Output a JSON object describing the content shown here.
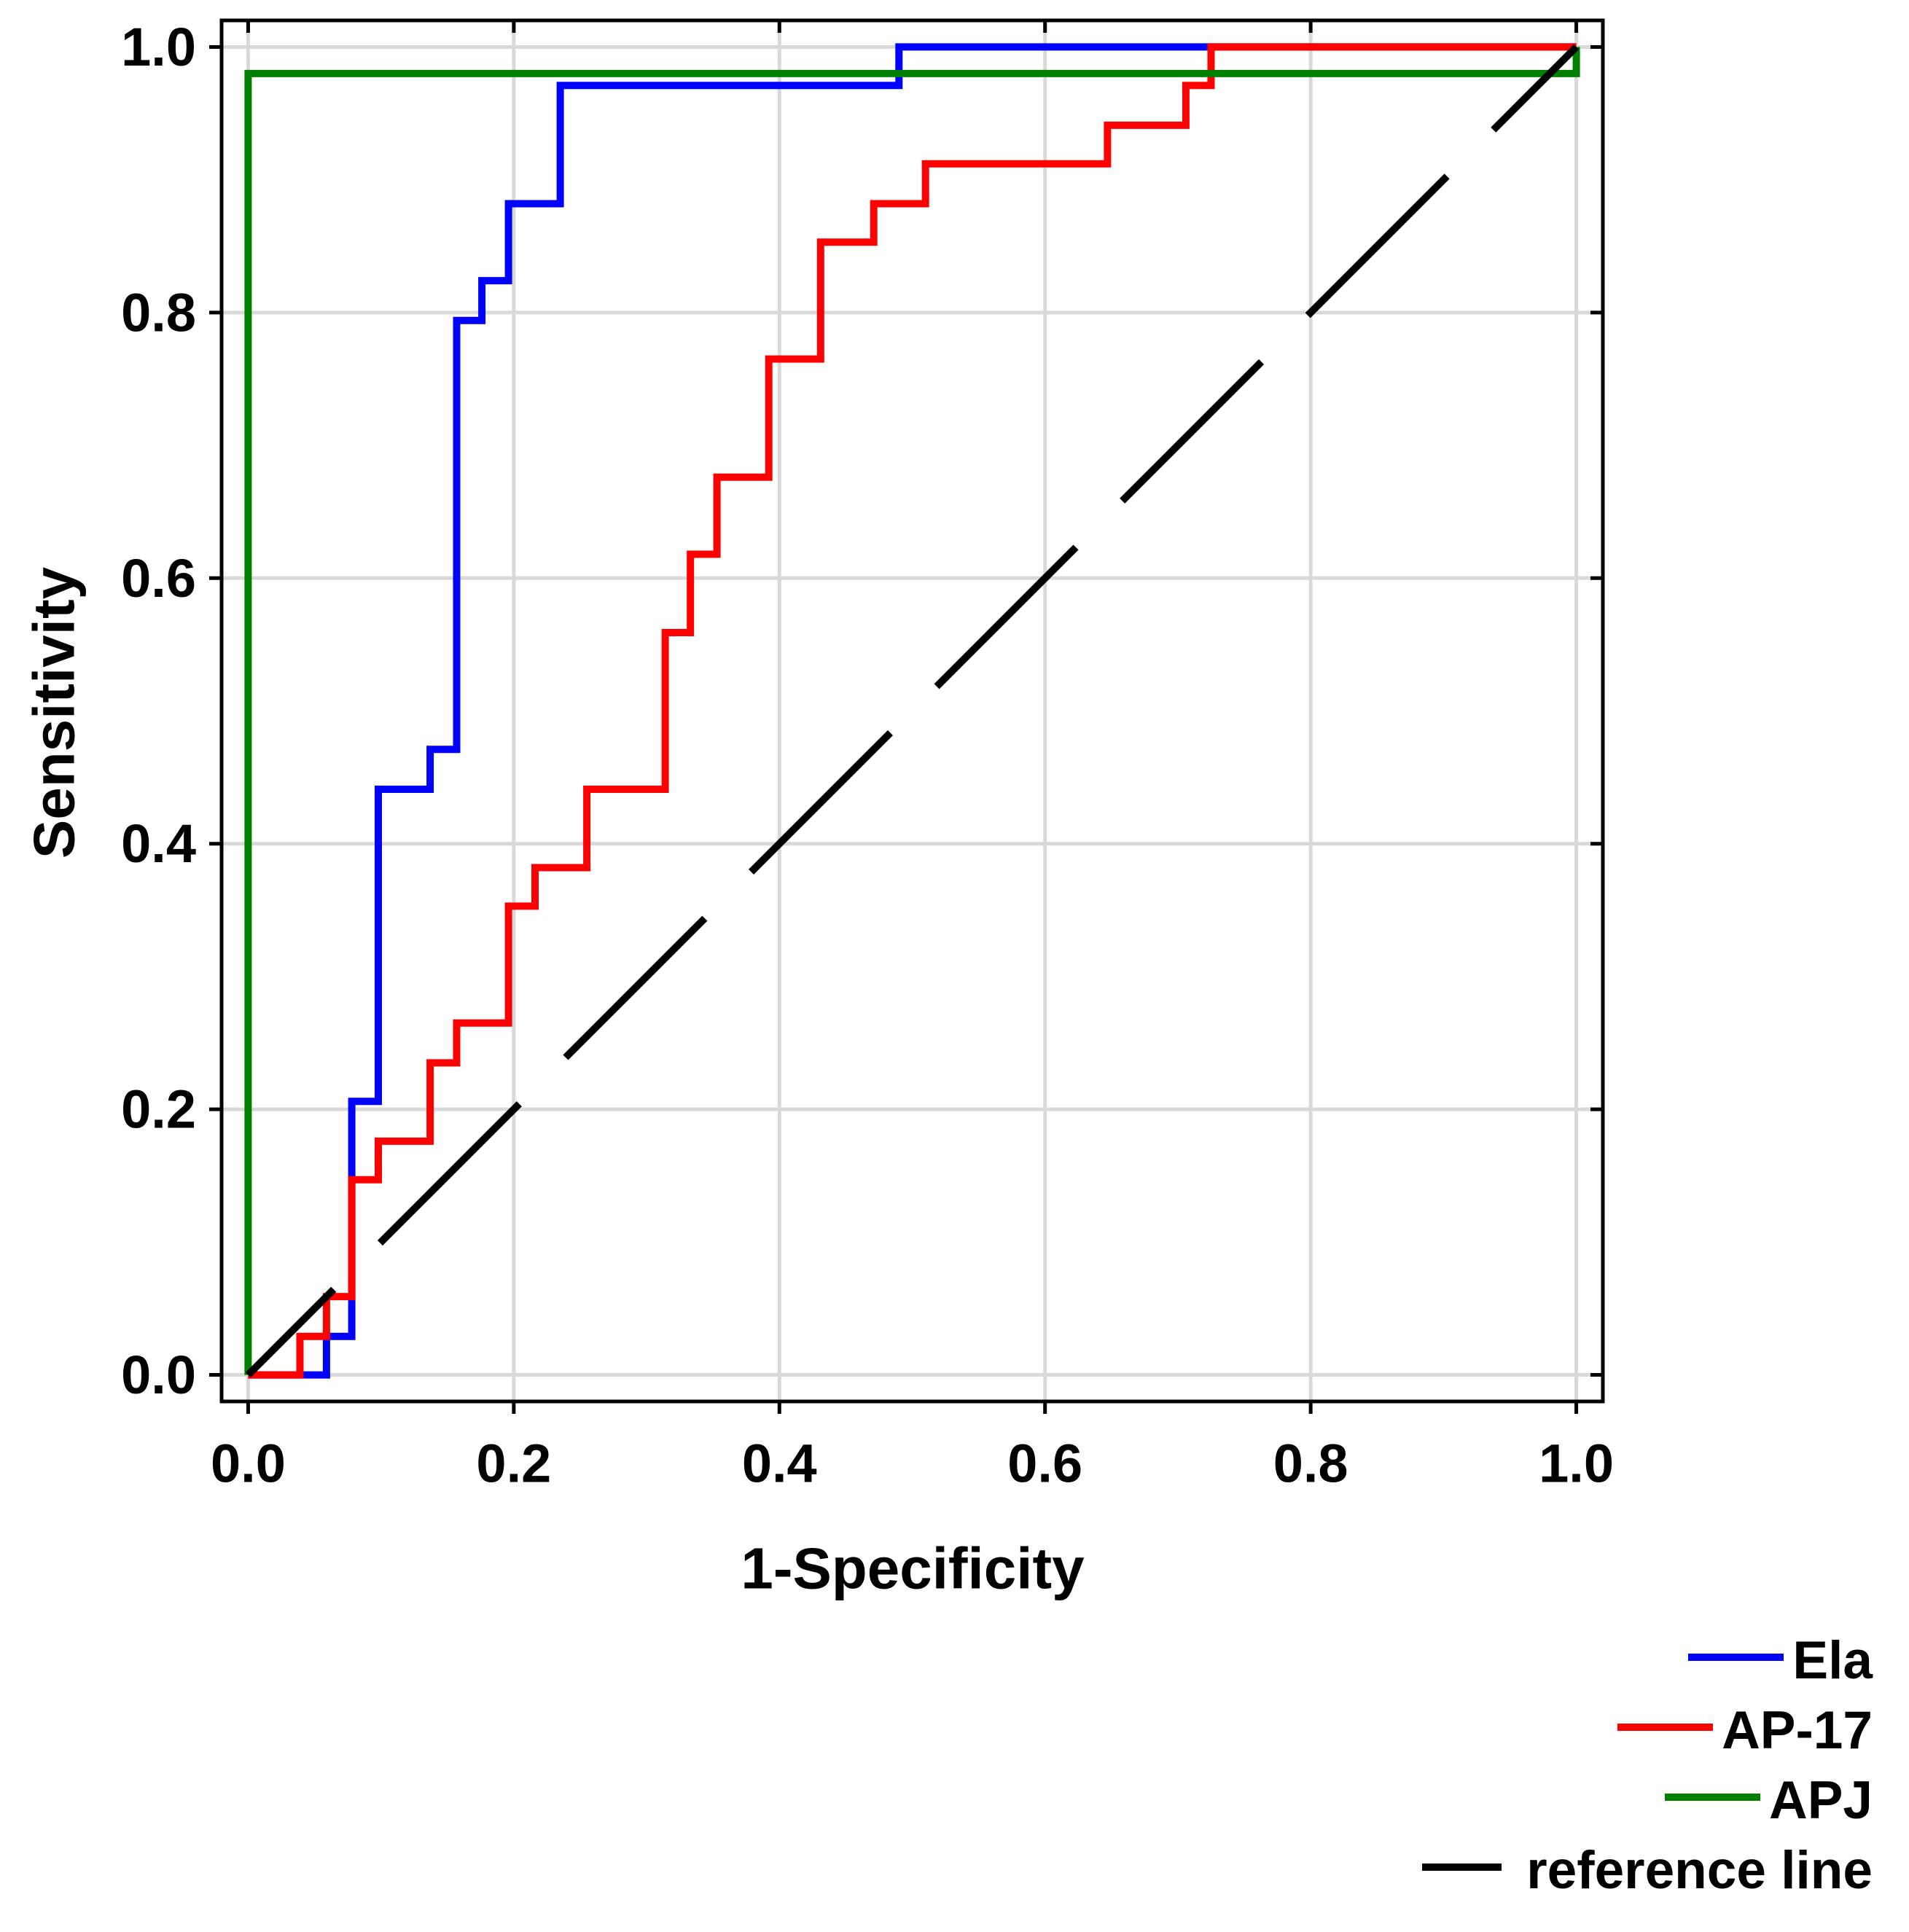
{
  "chart_data": {
    "type": "line",
    "xlabel": "1-Specificity",
    "ylabel": "Sensitivity",
    "xlim": [
      -0.02,
      1.02
    ],
    "ylim": [
      -0.02,
      1.02
    ],
    "xticks": [
      0.0,
      0.2,
      0.4,
      0.6,
      0.8,
      1.0
    ],
    "xtick_labels": [
      "0.0",
      "0.2",
      "0.4",
      "0.6",
      "0.8",
      "1.0"
    ],
    "yticks": [
      0.0,
      0.2,
      0.4,
      0.6,
      0.8,
      1.0
    ],
    "ytick_labels": [
      "0.0",
      "0.2",
      "0.4",
      "0.6",
      "0.8",
      "1.0"
    ],
    "grid": true,
    "legend_position": "bottom-right",
    "series": [
      {
        "name": "Ela",
        "color": "#0000ff",
        "dashed": false,
        "x": [
          0,
          0.059,
          0.059,
          0.078,
          0.078,
          0.098,
          0.098,
          0.137,
          0.137,
          0.157,
          0.157,
          0.176,
          0.176,
          0.196,
          0.196,
          0.235,
          0.235,
          0.49,
          0.49,
          1.0
        ],
        "y": [
          0,
          0,
          0.029,
          0.029,
          0.206,
          0.206,
          0.441,
          0.441,
          0.471,
          0.471,
          0.794,
          0.794,
          0.824,
          0.824,
          0.882,
          0.882,
          0.971,
          0.971,
          1.0,
          1.0
        ]
      },
      {
        "name": "AP-17",
        "color": "#ff0000",
        "dashed": false,
        "x": [
          0,
          0.039,
          0.039,
          0.059,
          0.059,
          0.078,
          0.078,
          0.098,
          0.098,
          0.137,
          0.137,
          0.157,
          0.157,
          0.196,
          0.196,
          0.216,
          0.216,
          0.255,
          0.255,
          0.314,
          0.314,
          0.333,
          0.333,
          0.353,
          0.353,
          0.392,
          0.392,
          0.431,
          0.431,
          0.471,
          0.471,
          0.51,
          0.51,
          0.647,
          0.647,
          0.706,
          0.706,
          0.725,
          0.725,
          1.0
        ],
        "y": [
          0,
          0,
          0.029,
          0.029,
          0.059,
          0.059,
          0.147,
          0.147,
          0.176,
          0.176,
          0.235,
          0.235,
          0.265,
          0.265,
          0.353,
          0.353,
          0.382,
          0.382,
          0.441,
          0.441,
          0.559,
          0.559,
          0.618,
          0.618,
          0.676,
          0.676,
          0.765,
          0.765,
          0.853,
          0.853,
          0.882,
          0.882,
          0.912,
          0.912,
          0.941,
          0.941,
          0.971,
          0.971,
          1.0,
          1.0
        ]
      },
      {
        "name": "APJ",
        "color": "#008000",
        "dashed": false,
        "x": [
          0,
          0,
          1.0,
          1.0
        ],
        "y": [
          0,
          0.98,
          0.98,
          1.0
        ]
      },
      {
        "name": "reference line",
        "color": "#000000",
        "dashed": true,
        "x": [
          0,
          1.0
        ],
        "y": [
          0,
          1.0
        ]
      }
    ]
  }
}
